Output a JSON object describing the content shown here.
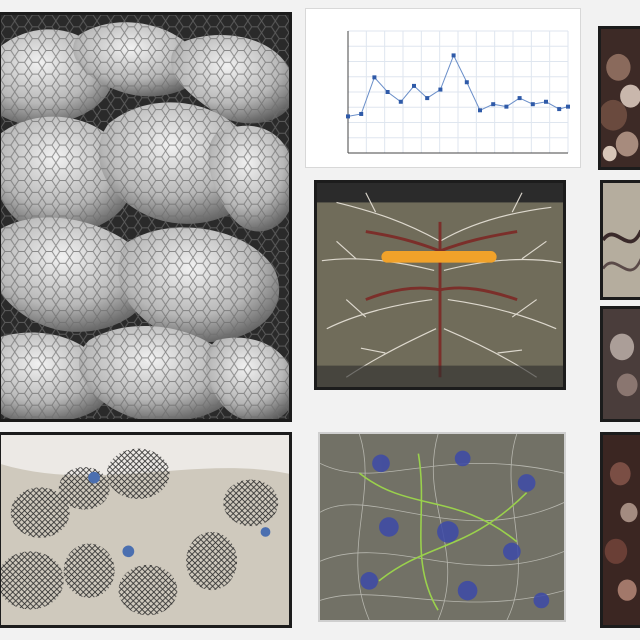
{
  "page": {
    "background": "#f2f2f2"
  },
  "panels": [
    {
      "id": "tissue-macro",
      "icon": "honeycomb-tissue-image",
      "palette": [
        "#dcdcdc",
        "#8a8a8a",
        "#2e2e2e"
      ]
    },
    {
      "id": "line-chart",
      "icon": "scatter-line-chart"
    },
    {
      "id": "tissue-closeup-top-right",
      "icon": "brown-tissue-image",
      "palette": [
        "#6a4a3e",
        "#c9b7ac"
      ]
    },
    {
      "id": "branching-specimen",
      "icon": "dendritic-specimen-image",
      "palette": [
        "#6f6c5b",
        "#f1a22a",
        "#7b2f2a",
        "#e8e4dc"
      ]
    },
    {
      "id": "specimen-right-middle",
      "icon": "tissue-image",
      "palette": [
        "#b5ad9e",
        "#3a2a2a"
      ]
    },
    {
      "id": "specimen-right-lower",
      "icon": "tissue-image",
      "palette": [
        "#5a4a48",
        "#d4c8c0"
      ]
    },
    {
      "id": "mesh-structure",
      "icon": "mesh-cell-image",
      "palette": [
        "#c8c2b6",
        "#3b3b3b",
        "#4b6fb0"
      ]
    },
    {
      "id": "neural-network-specimen",
      "icon": "neuron-network-image",
      "palette": [
        "#77766b",
        "#9ad14c",
        "#3d4aa8"
      ]
    },
    {
      "id": "tissue-bottom-right",
      "icon": "brown-tissue-image",
      "palette": [
        "#4a2f2a",
        "#d0b6a8"
      ]
    }
  ],
  "chart_data": {
    "type": "line",
    "title": "",
    "xlabel": "",
    "ylabel": "",
    "x": [
      0,
      0.06,
      0.12,
      0.18,
      0.24,
      0.3,
      0.36,
      0.42,
      0.48,
      0.54,
      0.6,
      0.66,
      0.72,
      0.78,
      0.84,
      0.9,
      0.96,
      1.0
    ],
    "y": [
      0.3,
      0.32,
      0.62,
      0.5,
      0.42,
      0.55,
      0.45,
      0.52,
      0.8,
      0.58,
      0.35,
      0.4,
      0.38,
      0.45,
      0.4,
      0.42,
      0.36,
      0.38
    ],
    "xlim": [
      0,
      1
    ],
    "ylim": [
      0,
      1
    ],
    "grid": true,
    "line_color": "#6b8fc9",
    "marker_color": "#2f5aa8",
    "x_ticks": [
      "",
      "",
      "",
      "",
      "",
      ""
    ],
    "y_ticks": [
      "",
      "",
      "",
      "",
      "",
      "",
      "",
      ""
    ]
  }
}
